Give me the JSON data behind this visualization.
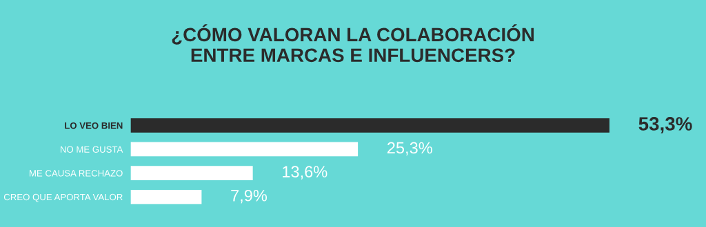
{
  "chart_data": {
    "type": "bar",
    "orientation": "horizontal",
    "title": "¿CÓMO VALORAN LA COLABORACIÓN\nENTRE MARCAS E INFLUENCERS?",
    "categories": [
      "LO VEO BIEN",
      "NO ME GUSTA",
      "ME CAUSA RECHAZO",
      "CREO QUE APORTA VALOR"
    ],
    "values": [
      53.3,
      25.3,
      13.6,
      7.9
    ],
    "colors": [
      "#2b2b2b",
      "#ffffff",
      "#ffffff",
      "#ffffff"
    ],
    "value_labels": [
      "53,3%",
      "25,3%",
      "13,6%",
      "7,9%"
    ],
    "grid": false,
    "legend": false
  }
}
